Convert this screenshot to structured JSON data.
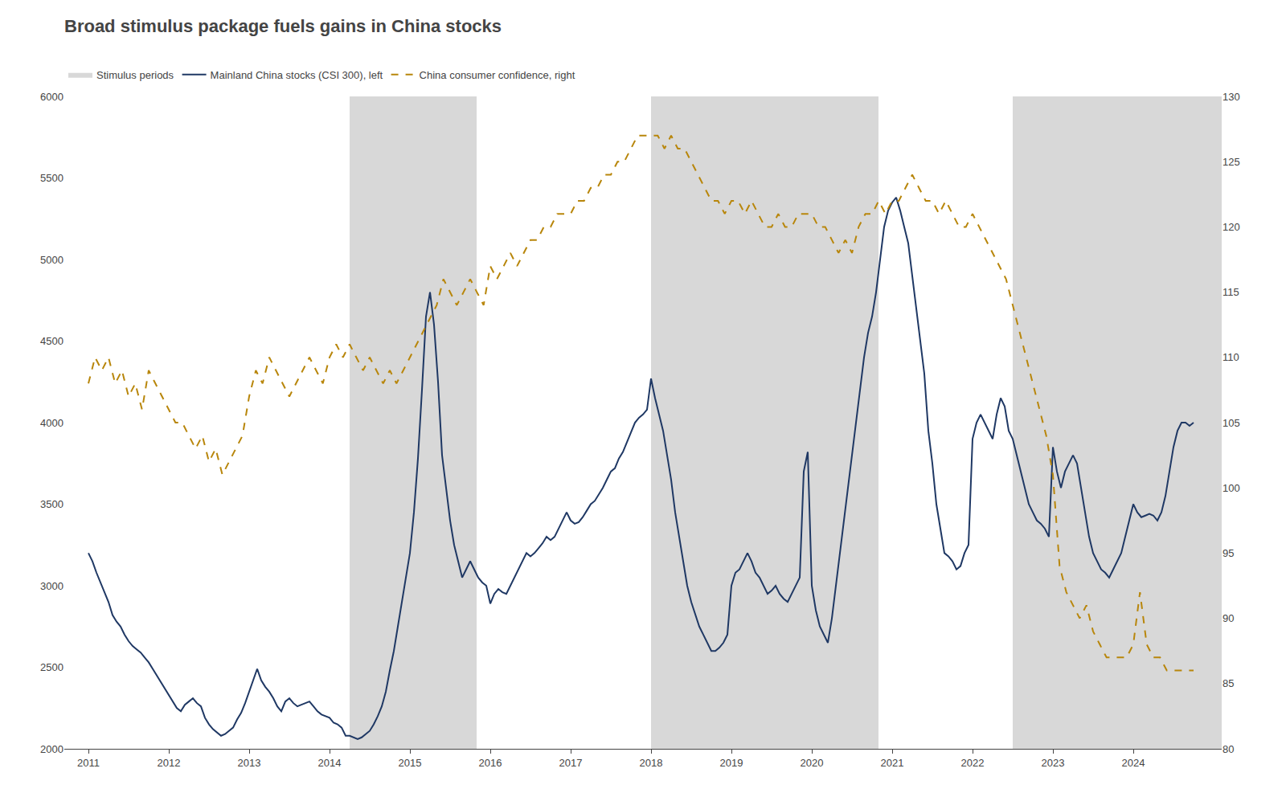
{
  "chart_data": {
    "type": "line",
    "title": "Broad stimulus package fuels gains in China stocks",
    "xlim": [
      2010.7,
      2025.1
    ],
    "xticks": [
      2011,
      2012,
      2013,
      2014,
      2015,
      2016,
      2017,
      2018,
      2019,
      2020,
      2021,
      2022,
      2023,
      2024
    ],
    "ylim": [
      2000,
      6000
    ],
    "yticks": [
      2000,
      2500,
      3000,
      3500,
      4000,
      4500,
      5000,
      5500,
      6000
    ],
    "y2lim": [
      80,
      130
    ],
    "y2ticks": [
      80,
      85,
      90,
      95,
      100,
      105,
      110,
      115,
      120,
      125,
      130
    ],
    "grid": false,
    "legend": "top",
    "shaded_periods": {
      "name": "Stimulus periods",
      "color": "#d8d8d8",
      "ranges": [
        [
          2014.25,
          2015.83
        ],
        [
          2018.0,
          2020.83
        ],
        [
          2022.5,
          2025.1
        ]
      ]
    },
    "series": [
      {
        "name": "Mainland China stocks (CSI 300), left",
        "color": "#1f3864",
        "line_style": "solid",
        "axis": "y",
        "x": [
          2011.0,
          2011.05,
          2011.1,
          2011.15,
          2011.2,
          2011.25,
          2011.3,
          2011.35,
          2011.4,
          2011.45,
          2011.5,
          2011.55,
          2011.6,
          2011.65,
          2011.7,
          2011.75,
          2011.8,
          2011.85,
          2011.9,
          2011.95,
          2012.0,
          2012.05,
          2012.1,
          2012.15,
          2012.2,
          2012.25,
          2012.3,
          2012.35,
          2012.4,
          2012.45,
          2012.5,
          2012.55,
          2012.6,
          2012.65,
          2012.7,
          2012.75,
          2012.8,
          2012.85,
          2012.9,
          2012.95,
          2013.0,
          2013.05,
          2013.1,
          2013.15,
          2013.2,
          2013.25,
          2013.3,
          2013.35,
          2013.4,
          2013.45,
          2013.5,
          2013.55,
          2013.6,
          2013.65,
          2013.7,
          2013.75,
          2013.8,
          2013.85,
          2013.9,
          2013.95,
          2014.0,
          2014.05,
          2014.1,
          2014.15,
          2014.2,
          2014.25,
          2014.3,
          2014.35,
          2014.4,
          2014.45,
          2014.5,
          2014.55,
          2014.6,
          2014.65,
          2014.7,
          2014.75,
          2014.8,
          2014.85,
          2014.9,
          2014.95,
          2015.0,
          2015.05,
          2015.1,
          2015.15,
          2015.2,
          2015.25,
          2015.3,
          2015.35,
          2015.4,
          2015.45,
          2015.5,
          2015.55,
          2015.6,
          2015.65,
          2015.7,
          2015.75,
          2015.8,
          2015.85,
          2015.9,
          2015.95,
          2016.0,
          2016.05,
          2016.1,
          2016.15,
          2016.2,
          2016.25,
          2016.3,
          2016.35,
          2016.4,
          2016.45,
          2016.5,
          2016.55,
          2016.6,
          2016.65,
          2016.7,
          2016.75,
          2016.8,
          2016.85,
          2016.9,
          2016.95,
          2017.0,
          2017.05,
          2017.1,
          2017.15,
          2017.2,
          2017.25,
          2017.3,
          2017.35,
          2017.4,
          2017.45,
          2017.5,
          2017.55,
          2017.6,
          2017.65,
          2017.7,
          2017.75,
          2017.8,
          2017.85,
          2017.9,
          2017.95,
          2018.0,
          2018.05,
          2018.1,
          2018.15,
          2018.2,
          2018.25,
          2018.3,
          2018.35,
          2018.4,
          2018.45,
          2018.5,
          2018.55,
          2018.6,
          2018.65,
          2018.7,
          2018.75,
          2018.8,
          2018.85,
          2018.9,
          2018.95,
          2019.0,
          2019.05,
          2019.1,
          2019.15,
          2019.2,
          2019.25,
          2019.3,
          2019.35,
          2019.4,
          2019.45,
          2019.5,
          2019.55,
          2019.6,
          2019.65,
          2019.7,
          2019.75,
          2019.8,
          2019.85,
          2019.9,
          2019.95,
          2020.0,
          2020.05,
          2020.1,
          2020.15,
          2020.2,
          2020.25,
          2020.3,
          2020.35,
          2020.4,
          2020.45,
          2020.5,
          2020.55,
          2020.6,
          2020.65,
          2020.7,
          2020.75,
          2020.8,
          2020.85,
          2020.9,
          2020.95,
          2021.0,
          2021.05,
          2021.1,
          2021.15,
          2021.2,
          2021.25,
          2021.3,
          2021.35,
          2021.4,
          2021.45,
          2021.5,
          2021.55,
          2021.6,
          2021.65,
          2021.7,
          2021.75,
          2021.8,
          2021.85,
          2021.9,
          2021.95,
          2022.0,
          2022.05,
          2022.1,
          2022.15,
          2022.2,
          2022.25,
          2022.3,
          2022.35,
          2022.4,
          2022.45,
          2022.5,
          2022.55,
          2022.6,
          2022.65,
          2022.7,
          2022.75,
          2022.8,
          2022.85,
          2022.9,
          2022.95,
          2023.0,
          2023.05,
          2023.1,
          2023.15,
          2023.2,
          2023.25,
          2023.3,
          2023.35,
          2023.4,
          2023.45,
          2023.5,
          2023.55,
          2023.6,
          2023.65,
          2023.7,
          2023.75,
          2023.8,
          2023.85,
          2023.9,
          2023.95,
          2024.0,
          2024.05,
          2024.1,
          2024.15,
          2024.2,
          2024.25,
          2024.3,
          2024.35,
          2024.4,
          2024.45,
          2024.5,
          2024.55,
          2024.6,
          2024.65,
          2024.7,
          2024.75
        ],
        "values": [
          3200,
          3150,
          3080,
          3020,
          2960,
          2900,
          2820,
          2780,
          2750,
          2700,
          2660,
          2630,
          2610,
          2590,
          2560,
          2530,
          2490,
          2450,
          2410,
          2370,
          2330,
          2290,
          2250,
          2230,
          2270,
          2290,
          2310,
          2280,
          2260,
          2190,
          2150,
          2120,
          2100,
          2080,
          2090,
          2110,
          2130,
          2180,
          2220,
          2280,
          2350,
          2420,
          2490,
          2420,
          2380,
          2350,
          2310,
          2260,
          2230,
          2290,
          2310,
          2280,
          2260,
          2270,
          2280,
          2290,
          2260,
          2230,
          2210,
          2200,
          2190,
          2160,
          2150,
          2130,
          2080,
          2080,
          2070,
          2060,
          2070,
          2090,
          2110,
          2150,
          2200,
          2260,
          2350,
          2480,
          2600,
          2750,
          2900,
          3050,
          3200,
          3450,
          3780,
          4200,
          4650,
          4800,
          4600,
          4250,
          3800,
          3600,
          3400,
          3250,
          3150,
          3050,
          3100,
          3150,
          3100,
          3050,
          3020,
          3000,
          2890,
          2950,
          2980,
          2960,
          2950,
          3000,
          3050,
          3100,
          3150,
          3200,
          3180,
          3200,
          3230,
          3260,
          3300,
          3280,
          3300,
          3350,
          3400,
          3450,
          3400,
          3380,
          3390,
          3420,
          3460,
          3500,
          3520,
          3560,
          3600,
          3650,
          3700,
          3720,
          3780,
          3820,
          3880,
          3940,
          4000,
          4030,
          4050,
          4080,
          4270,
          4150,
          4050,
          3950,
          3800,
          3650,
          3450,
          3300,
          3150,
          3000,
          2900,
          2830,
          2750,
          2700,
          2650,
          2600,
          2600,
          2620,
          2650,
          2700,
          3000,
          3080,
          3100,
          3150,
          3200,
          3150,
          3080,
          3050,
          3000,
          2950,
          2970,
          3000,
          2950,
          2920,
          2900,
          2950,
          3000,
          3050,
          3700,
          3820,
          3000,
          2850,
          2750,
          2700,
          2650,
          2800,
          3000,
          3200,
          3400,
          3600,
          3800,
          4000,
          4200,
          4400,
          4550,
          4650,
          4800,
          5000,
          5200,
          5300,
          5350,
          5380,
          5300,
          5200,
          5100,
          4900,
          4700,
          4500,
          4300,
          3950,
          3750,
          3500,
          3350,
          3200,
          3180,
          3150,
          3100,
          3120,
          3200,
          3250,
          3900,
          4000,
          4050,
          4000,
          3950,
          3900,
          4050,
          4150,
          4100,
          3950,
          3900,
          3800,
          3700,
          3600,
          3500,
          3450,
          3400,
          3380,
          3350,
          3300,
          3850,
          3700,
          3600,
          3700,
          3750,
          3800,
          3750,
          3600,
          3450,
          3300,
          3200,
          3150,
          3100,
          3080,
          3050,
          3100,
          3150,
          3200,
          3300,
          3400,
          3500,
          3450,
          3420,
          3430,
          3440,
          3430,
          3400,
          3450,
          3550,
          3700,
          3850,
          3950,
          4000,
          4000,
          3980,
          4000
        ]
      },
      {
        "name": "China consumer confidence, right",
        "color": "#b8860b",
        "line_style": "dashed",
        "axis": "y2",
        "x": [
          2011.0,
          2011.083,
          2011.167,
          2011.25,
          2011.333,
          2011.417,
          2011.5,
          2011.583,
          2011.667,
          2011.75,
          2011.833,
          2011.917,
          2012.0,
          2012.083,
          2012.167,
          2012.25,
          2012.333,
          2012.417,
          2012.5,
          2012.583,
          2012.667,
          2012.75,
          2012.833,
          2012.917,
          2013.0,
          2013.083,
          2013.167,
          2013.25,
          2013.333,
          2013.417,
          2013.5,
          2013.583,
          2013.667,
          2013.75,
          2013.833,
          2013.917,
          2014.0,
          2014.083,
          2014.167,
          2014.25,
          2014.333,
          2014.417,
          2014.5,
          2014.583,
          2014.667,
          2014.75,
          2014.833,
          2014.917,
          2015.0,
          2015.083,
          2015.167,
          2015.25,
          2015.333,
          2015.417,
          2015.5,
          2015.583,
          2015.667,
          2015.75,
          2015.833,
          2015.917,
          2016.0,
          2016.083,
          2016.167,
          2016.25,
          2016.333,
          2016.417,
          2016.5,
          2016.583,
          2016.667,
          2016.75,
          2016.833,
          2016.917,
          2017.0,
          2017.083,
          2017.167,
          2017.25,
          2017.333,
          2017.417,
          2017.5,
          2017.583,
          2017.667,
          2017.75,
          2017.833,
          2017.917,
          2018.0,
          2018.083,
          2018.167,
          2018.25,
          2018.333,
          2018.417,
          2018.5,
          2018.583,
          2018.667,
          2018.75,
          2018.833,
          2018.917,
          2019.0,
          2019.083,
          2019.167,
          2019.25,
          2019.333,
          2019.417,
          2019.5,
          2019.583,
          2019.667,
          2019.75,
          2019.833,
          2019.917,
          2020.0,
          2020.083,
          2020.167,
          2020.25,
          2020.333,
          2020.417,
          2020.5,
          2020.583,
          2020.667,
          2020.75,
          2020.833,
          2020.917,
          2021.0,
          2021.083,
          2021.167,
          2021.25,
          2021.333,
          2021.417,
          2021.5,
          2021.583,
          2021.667,
          2021.75,
          2021.833,
          2021.917,
          2022.0,
          2022.083,
          2022.167,
          2022.25,
          2022.333,
          2022.417,
          2022.5,
          2022.583,
          2022.667,
          2022.75,
          2022.833,
          2022.917,
          2023.0,
          2023.083,
          2023.167,
          2023.25,
          2023.333,
          2023.417,
          2023.5,
          2023.583,
          2023.667,
          2023.75,
          2023.833,
          2023.917,
          2024.0,
          2024.083,
          2024.167,
          2024.25,
          2024.333,
          2024.417,
          2024.5,
          2024.583,
          2024.667,
          2024.75
        ],
        "values": [
          108,
          110,
          109,
          110,
          108,
          109,
          107,
          108,
          106,
          109,
          108,
          107,
          106,
          105,
          105,
          104,
          103,
          104,
          102,
          103,
          101,
          102,
          103,
          104,
          107,
          109,
          108,
          110,
          109,
          108,
          107,
          108,
          109,
          110,
          109,
          108,
          110,
          111,
          110,
          111,
          110,
          109,
          110,
          109,
          108,
          109,
          108,
          109,
          110,
          111,
          112,
          113,
          114,
          116,
          115,
          114,
          115,
          116,
          115,
          114,
          117,
          116,
          117,
          118,
          117,
          118,
          119,
          119,
          120,
          120,
          121,
          121,
          121,
          122,
          122,
          123,
          123,
          124,
          124,
          125,
          125,
          126,
          127,
          127,
          127,
          127,
          126,
          127,
          126,
          126,
          125,
          124,
          123,
          122,
          122,
          121,
          122,
          122,
          121,
          122,
          121,
          120,
          120,
          121,
          120,
          120,
          121,
          121,
          121,
          120,
          120,
          119,
          118,
          119,
          118,
          120,
          121,
          121,
          122,
          121,
          122,
          122,
          123,
          124,
          123,
          122,
          122,
          121,
          122,
          121,
          120,
          120,
          121,
          120,
          119,
          118,
          117,
          116,
          114,
          112,
          110,
          108,
          106,
          104,
          101,
          94,
          92,
          91,
          90,
          91,
          89,
          88,
          87,
          87,
          87,
          87,
          88,
          92,
          88,
          87,
          87,
          86,
          86,
          86,
          86,
          86
        ]
      }
    ]
  }
}
